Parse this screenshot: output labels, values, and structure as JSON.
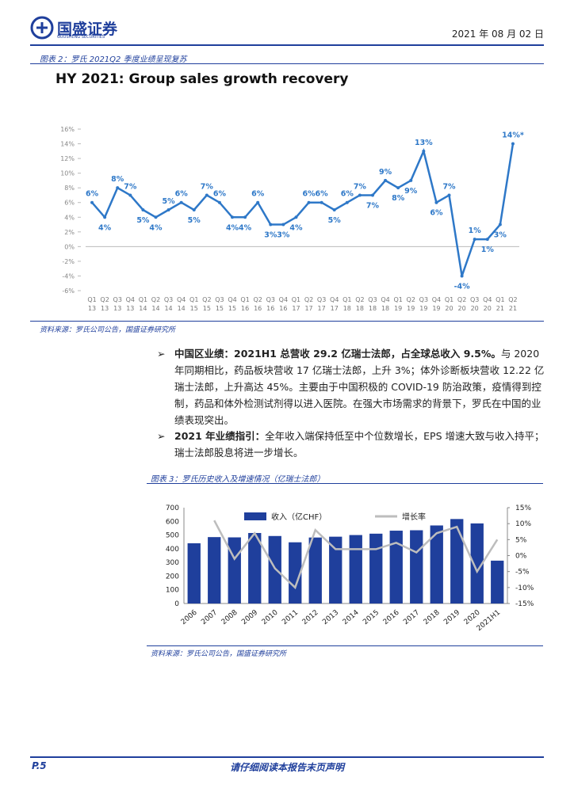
{
  "header": {
    "logo": "国盛证券",
    "logo_sub": "GUOSHENG SECURITIES",
    "date": "2021 年 08 月 02 日"
  },
  "figure_2": {
    "label": "图表 2：罗氏 2021Q2 季度业绩呈现复苏",
    "source": "资料来源：罗氏公司公告，国盛证券研究所"
  },
  "bullets": [
    {
      "bold": "中国区业绩：2021H1 总营收 29.2 亿瑞士法郎，占全球总收入 9.5%。",
      "text": "与 2020 年同期相比，药品板块营收 17 亿瑞士法郎，上升 3%；体外诊断板块营收 12.22 亿瑞士法郎，上升高达 45%。主要由于中国积极的 COVID-19 防治政策，疫情得到控制，药品和体外检测试剂得以进入医院。在强大市场需求的背景下，罗氏在中国的业绩表现突出。"
    },
    {
      "bold": "2021 年业绩指引：",
      "text": "全年收入端保持低至中个位数增长，EPS 增速大致与收入持平；瑞士法郎股息将进一步增长。"
    }
  ],
  "figure_3": {
    "label": "图表 3：罗氏历史收入及增速情况（亿瑞士法郎）",
    "source": "资料来源：罗氏公司公告，国盛证券研究所"
  },
  "footer": {
    "page": "P.5",
    "note": "请仔细阅读本报告末页声明"
  },
  "chart_data": [
    {
      "type": "line",
      "title": "HY 2021: Group sales growth recovery",
      "categories": [
        "Q1 13",
        "Q2 13",
        "Q3 13",
        "Q4 13",
        "Q1 14",
        "Q2 14",
        "Q3 14",
        "Q4 14",
        "Q1 15",
        "Q2 15",
        "Q3 15",
        "Q4 15",
        "Q1 16",
        "Q2 16",
        "Q3 16",
        "Q4 16",
        "Q1 17",
        "Q2 17",
        "Q3 17",
        "Q4 17",
        "Q1 18",
        "Q2 18",
        "Q3 18",
        "Q4 18",
        "Q1 19",
        "Q2 19",
        "Q3 19",
        "Q4 19",
        "Q1 20",
        "Q2 20",
        "Q3 20",
        "Q4 20",
        "Q1 21",
        "Q2 21"
      ],
      "values": [
        6,
        4,
        8,
        7,
        5,
        4,
        5,
        6,
        5,
        7,
        6,
        4,
        4,
        6,
        3,
        3,
        4,
        6,
        6,
        5,
        6,
        7,
        7,
        9,
        8,
        9,
        13,
        6,
        7,
        -4,
        1,
        1,
        3,
        14
      ],
      "value_labels": [
        "6%",
        "4%",
        "8%",
        "7%",
        "5%",
        "4%",
        "5%",
        "6%",
        "5%",
        "7%",
        "6%",
        "4%",
        "4%",
        "6%",
        "3%",
        "3%",
        "4%",
        "6%",
        "6%",
        "5%",
        "6%",
        "7%",
        "7%",
        "9%",
        "8%",
        "9%",
        "13%",
        "6%",
        "7%",
        "-4%",
        "1%",
        "1%",
        "3%",
        "14%*"
      ],
      "color": "#2e78c8",
      "ylim": [
        -6,
        16
      ],
      "yticks": [
        {
          "value": -6,
          "label": "-6%"
        },
        {
          "value": -4,
          "label": "-4%"
        },
        {
          "value": -2,
          "label": "-2%"
        },
        {
          "value": 0,
          "label": "0%"
        },
        {
          "value": 2,
          "label": "2%"
        },
        {
          "value": 4,
          "label": "4%"
        },
        {
          "value": 6,
          "label": "6%"
        },
        {
          "value": 8,
          "label": "8%"
        },
        {
          "value": 10,
          "label": "10%"
        },
        {
          "value": 12,
          "label": "12%"
        },
        {
          "value": 14,
          "label": "14%"
        },
        {
          "value": 16,
          "label": "16%"
        }
      ]
    },
    {
      "type": "bar_line",
      "categories": [
        "2006",
        "2007",
        "2008",
        "2009",
        "2010",
        "2011",
        "2012",
        "2013",
        "2014",
        "2015",
        "2016",
        "2017",
        "2018",
        "2019",
        "2020",
        "2021H1"
      ],
      "series": [
        {
          "name": "收入（亿CHF）",
          "color": "#1f3f9c",
          "values": [
            440,
            485,
            483,
            515,
            493,
            447,
            482,
            488,
            500,
            510,
            532,
            535,
            570,
            617,
            585,
            313
          ]
        },
        {
          "name": "增长率",
          "color": "#bdbdbd",
          "axis": "y2",
          "values": [
            null,
            11,
            -1,
            7,
            -4,
            -10,
            8,
            2,
            2,
            2,
            4,
            1,
            7,
            9,
            -5,
            5
          ]
        }
      ],
      "ylim": [
        0,
        700
      ],
      "yticks": [
        0,
        100,
        200,
        300,
        400,
        500,
        600,
        700
      ],
      "y2lim": [
        -15,
        15
      ],
      "y2ticks": [
        {
          "value": -15,
          "label": "-15%"
        },
        {
          "value": -10,
          "label": "-10%"
        },
        {
          "value": -5,
          "label": "-5%"
        },
        {
          "value": 0,
          "label": "0%"
        },
        {
          "value": 5,
          "label": "5%"
        },
        {
          "value": 10,
          "label": "10%"
        },
        {
          "value": 15,
          "label": "15%"
        }
      ]
    }
  ]
}
